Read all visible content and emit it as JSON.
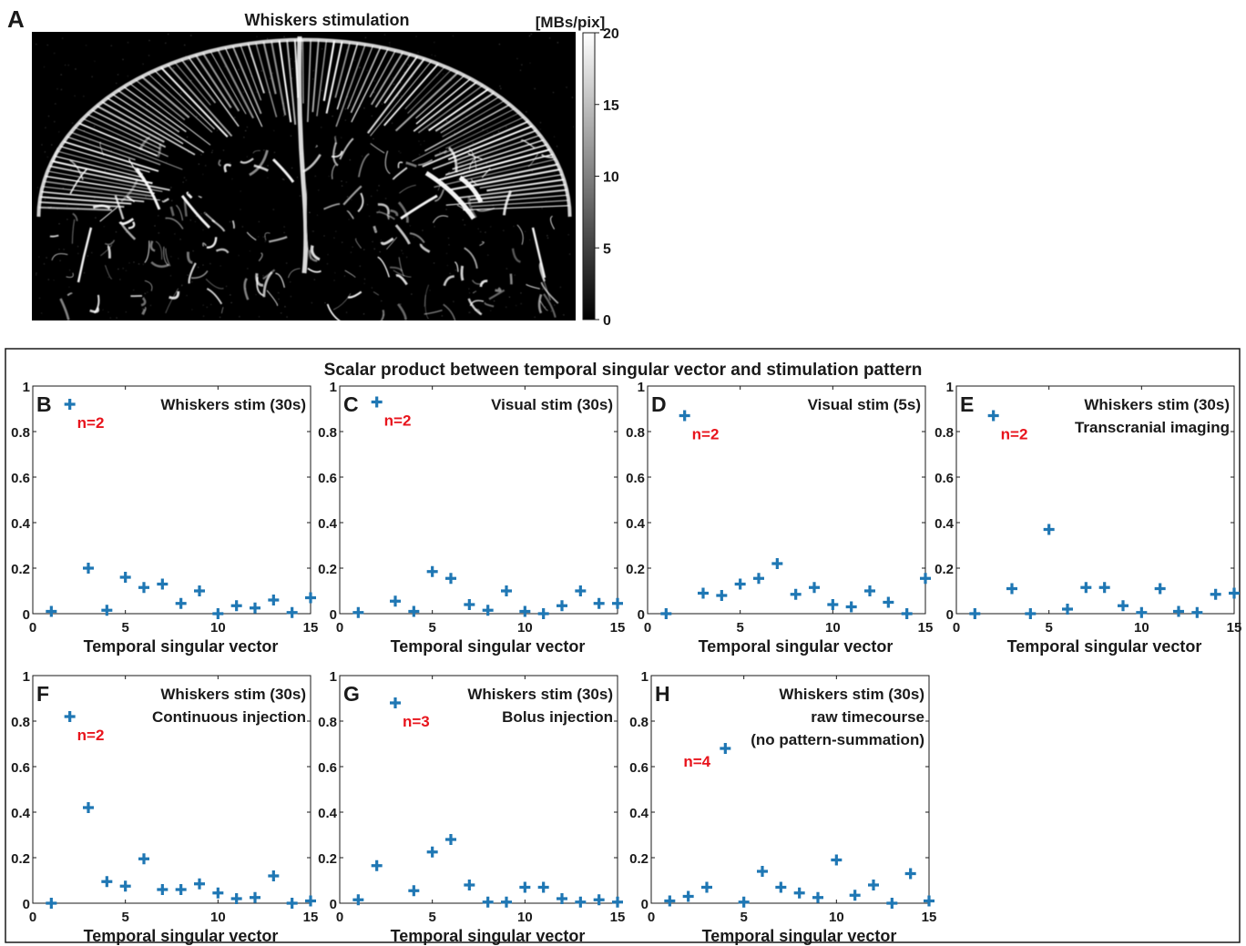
{
  "panel_a": {
    "letter": "A",
    "title": "Whiskers stimulation",
    "colorbar_unit": "[MBs/pix]",
    "colorbar_ticks": [
      0,
      5,
      10,
      15,
      20
    ]
  },
  "group_title": "Scalar product between temporal singular vector and stimulation pattern",
  "colors": {
    "marker": "#1f77b4",
    "annotation": "#e8141c",
    "text": "#1a1a1a"
  },
  "chart_data": [
    {
      "type": "scatter",
      "letter": "B",
      "labels": [
        "Whiskers stim (30s)"
      ],
      "annotation": "n=2",
      "xlabel": "Temporal singular vector",
      "ylabel": "",
      "xlim": [
        0,
        15
      ],
      "ylim": [
        0,
        1
      ],
      "x": [
        1,
        2,
        3,
        4,
        5,
        6,
        7,
        8,
        9,
        10,
        11,
        12,
        13,
        14,
        15
      ],
      "values": [
        0.01,
        0.92,
        0.2,
        0.015,
        0.16,
        0.115,
        0.13,
        0.045,
        0.1,
        0.0,
        0.035,
        0.025,
        0.06,
        0.005,
        0.07
      ]
    },
    {
      "type": "scatter",
      "letter": "C",
      "labels": [
        "Visual stim (30s)"
      ],
      "annotation": "n=2",
      "xlabel": "Temporal singular vector",
      "ylabel": "",
      "xlim": [
        0,
        15
      ],
      "ylim": [
        0,
        1
      ],
      "x": [
        1,
        2,
        3,
        4,
        5,
        6,
        7,
        8,
        9,
        10,
        11,
        12,
        13,
        14,
        15
      ],
      "values": [
        0.005,
        0.93,
        0.055,
        0.01,
        0.185,
        0.155,
        0.04,
        0.015,
        0.1,
        0.01,
        0.0,
        0.035,
        0.1,
        0.045,
        0.045
      ]
    },
    {
      "type": "scatter",
      "letter": "D",
      "labels": [
        "Visual stim (5s)"
      ],
      "annotation": "n=2",
      "xlabel": "Temporal singular vector",
      "ylabel": "",
      "xlim": [
        0,
        15
      ],
      "ylim": [
        0,
        1
      ],
      "x": [
        1,
        2,
        3,
        4,
        5,
        6,
        7,
        8,
        9,
        10,
        11,
        12,
        13,
        14,
        15
      ],
      "values": [
        0.0,
        0.87,
        0.09,
        0.08,
        0.13,
        0.155,
        0.22,
        0.085,
        0.115,
        0.04,
        0.03,
        0.1,
        0.05,
        0.0,
        0.155
      ]
    },
    {
      "type": "scatter",
      "letter": "E",
      "labels": [
        "Whiskers stim (30s)",
        "Transcranial imaging"
      ],
      "annotation": "n=2",
      "xlabel": "Temporal singular vector",
      "ylabel": "",
      "xlim": [
        0,
        15
      ],
      "ylim": [
        0,
        1
      ],
      "x": [
        1,
        2,
        3,
        4,
        5,
        6,
        7,
        8,
        9,
        10,
        11,
        12,
        13,
        14,
        15
      ],
      "values": [
        0.0,
        0.87,
        0.11,
        0.0,
        0.37,
        0.02,
        0.115,
        0.115,
        0.035,
        0.005,
        0.11,
        0.01,
        0.005,
        0.085,
        0.09
      ]
    },
    {
      "type": "scatter",
      "letter": "F",
      "labels": [
        "Whiskers stim (30s)",
        "Continuous injection"
      ],
      "annotation": "n=2",
      "xlabel": "Temporal singular vector",
      "ylabel": "",
      "xlim": [
        0,
        15
      ],
      "ylim": [
        0,
        1
      ],
      "x": [
        1,
        2,
        3,
        4,
        5,
        6,
        7,
        8,
        9,
        10,
        11,
        12,
        13,
        14,
        15
      ],
      "values": [
        0.0,
        0.82,
        0.42,
        0.095,
        0.075,
        0.195,
        0.06,
        0.06,
        0.085,
        0.045,
        0.02,
        0.025,
        0.12,
        0.0,
        0.01
      ]
    },
    {
      "type": "scatter",
      "letter": "G",
      "labels": [
        "Whiskers stim (30s)",
        "Bolus injection"
      ],
      "annotation": "n=3",
      "xlabel": "Temporal singular vector",
      "ylabel": "",
      "xlim": [
        0,
        15
      ],
      "ylim": [
        0,
        1
      ],
      "x": [
        1,
        2,
        3,
        4,
        5,
        6,
        7,
        8,
        9,
        10,
        11,
        12,
        13,
        14,
        15
      ],
      "values": [
        0.015,
        0.165,
        0.88,
        0.055,
        0.225,
        0.28,
        0.08,
        0.005,
        0.005,
        0.07,
        0.07,
        0.02,
        0.005,
        0.015,
        0.005
      ]
    },
    {
      "type": "scatter",
      "letter": "H",
      "labels": [
        "Whiskers stim (30s)",
        "raw timecourse",
        "(no pattern-summation)"
      ],
      "annotation": "n=4",
      "xlabel": "Temporal singular vector",
      "ylabel": "",
      "xlim": [
        0,
        15
      ],
      "ylim": [
        0,
        1
      ],
      "x": [
        1,
        2,
        3,
        4,
        5,
        6,
        7,
        8,
        9,
        10,
        11,
        12,
        13,
        14,
        15
      ],
      "values": [
        0.01,
        0.03,
        0.07,
        0.68,
        0.005,
        0.14,
        0.07,
        0.045,
        0.025,
        0.19,
        0.035,
        0.08,
        0.0,
        0.13,
        0.01
      ]
    }
  ]
}
